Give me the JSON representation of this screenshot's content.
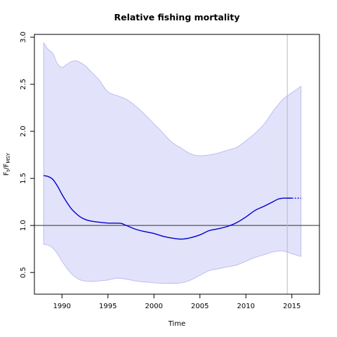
{
  "chart_data": {
    "type": "line",
    "title": "Relative fishing mortality",
    "xlabel": "Time",
    "ylabel": {
      "main": "F",
      "sub1": "t",
      "sep": "/F",
      "sub2": "MSY"
    },
    "xlim": [
      1987,
      2018
    ],
    "ylim": [
      0.27,
      3.03
    ],
    "xticks": [
      1990,
      1995,
      2000,
      2005,
      2010,
      2015
    ],
    "yticks": [
      0.5,
      1.0,
      1.5,
      2.0,
      2.5,
      3.0
    ],
    "ytick_labels": [
      "0.5",
      "1.0",
      "1.5",
      "2.0",
      "2.5",
      "3.0"
    ],
    "reference_line": {
      "y": 1.0,
      "color": "#555555"
    },
    "vertical_line": {
      "x": 2014.5,
      "color": "#bbbbbb"
    },
    "colors": {
      "line": "#0000cc",
      "band_fill": "#e2e2fb",
      "band_edge": "#b4b4ee"
    },
    "series": [
      {
        "role": "estimate",
        "x": [
          1988,
          1988.5,
          1989,
          1989.5,
          1990,
          1990.5,
          1991,
          1991.5,
          1992,
          1992.5,
          1993,
          1994,
          1995,
          1996,
          1996.5,
          1997,
          1998,
          1999,
          2000,
          2001,
          2002,
          2003,
          2004,
          2005,
          2006,
          2007,
          2008,
          2009,
          2010,
          2011,
          2012,
          2013,
          2013.5,
          2014,
          2014.5,
          2015
        ],
        "y": [
          1.53,
          1.52,
          1.49,
          1.42,
          1.33,
          1.25,
          1.18,
          1.13,
          1.09,
          1.065,
          1.05,
          1.035,
          1.025,
          1.025,
          1.02,
          1.0,
          0.96,
          0.935,
          0.915,
          0.885,
          0.865,
          0.855,
          0.87,
          0.9,
          0.945,
          0.965,
          0.99,
          1.03,
          1.09,
          1.16,
          1.205,
          1.255,
          1.28,
          1.29,
          1.29,
          1.29
        ]
      },
      {
        "role": "projection",
        "x": [
          2015,
          2016
        ],
        "y": [
          1.29,
          1.29
        ]
      },
      {
        "role": "upper_ci",
        "x": [
          1988,
          1988.5,
          1989,
          1989.5,
          1990,
          1990.5,
          1991,
          1991.5,
          1992,
          1992.5,
          1993,
          1994,
          1995,
          1996,
          1997,
          1998,
          1999,
          2000,
          2001,
          2002,
          2003,
          2004,
          2005,
          2006,
          2007,
          2008,
          2009,
          2010,
          2011,
          2012,
          2013,
          2013.5,
          2014,
          2015,
          2016
        ],
        "y": [
          2.94,
          2.87,
          2.83,
          2.72,
          2.68,
          2.71,
          2.74,
          2.75,
          2.73,
          2.7,
          2.65,
          2.55,
          2.42,
          2.38,
          2.34,
          2.27,
          2.18,
          2.08,
          1.98,
          1.88,
          1.82,
          1.76,
          1.74,
          1.75,
          1.77,
          1.8,
          1.83,
          1.9,
          1.98,
          2.08,
          2.22,
          2.28,
          2.34,
          2.41,
          2.48
        ]
      },
      {
        "role": "lower_ci",
        "x": [
          1988,
          1988.5,
          1989,
          1989.5,
          1990,
          1990.5,
          1991,
          1991.5,
          1992,
          1993,
          1994,
          1995,
          1996,
          1997,
          1998,
          1999,
          2000,
          2001,
          2002,
          2003,
          2004,
          2005,
          2006,
          2007,
          2008,
          2009,
          2010,
          2011,
          2012,
          2013,
          2014,
          2015,
          2016
        ],
        "y": [
          0.8,
          0.79,
          0.76,
          0.7,
          0.62,
          0.55,
          0.49,
          0.45,
          0.42,
          0.405,
          0.41,
          0.42,
          0.44,
          0.43,
          0.41,
          0.4,
          0.39,
          0.385,
          0.385,
          0.39,
          0.42,
          0.47,
          0.52,
          0.54,
          0.56,
          0.58,
          0.62,
          0.66,
          0.69,
          0.72,
          0.73,
          0.7,
          0.67
        ]
      }
    ],
    "grid": false,
    "legend": "none"
  }
}
